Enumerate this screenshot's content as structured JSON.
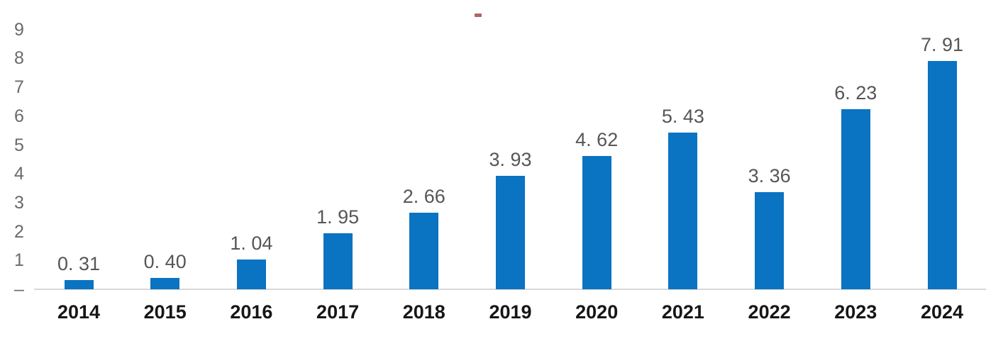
{
  "chart_data": {
    "type": "bar",
    "title": "",
    "title_artifact": "-",
    "categories": [
      "2014",
      "2015",
      "2016",
      "2017",
      "2018",
      "2019",
      "2020",
      "2021",
      "2022",
      "2023",
      "2024"
    ],
    "values": [
      0.31,
      0.4,
      1.04,
      1.95,
      2.66,
      3.93,
      4.62,
      5.43,
      3.36,
      6.23,
      7.91
    ],
    "value_labels": [
      "0. 31",
      "0. 40",
      "1. 04",
      "1. 95",
      "2. 66",
      "3. 93",
      "4. 62",
      "5. 43",
      "3. 36",
      "6. 23",
      "7. 91"
    ],
    "xlabel": "",
    "ylabel": "",
    "ylim": [
      0,
      9
    ],
    "y_ticks": [
      "9",
      "8",
      "7",
      "6",
      "5",
      "4",
      "3",
      "2",
      "1",
      "–"
    ],
    "y_tick_values": [
      9,
      8,
      7,
      6,
      5,
      4,
      3,
      2,
      1,
      0
    ],
    "grid": false,
    "legend": "none",
    "colors": {
      "bar": "#0a73c2",
      "axis_line": "#d7d7d7",
      "y_tick_label": "#6a6a6a",
      "value_label": "#565656",
      "category_label": "#161616",
      "title_artifact": "#9b4f4a"
    }
  }
}
